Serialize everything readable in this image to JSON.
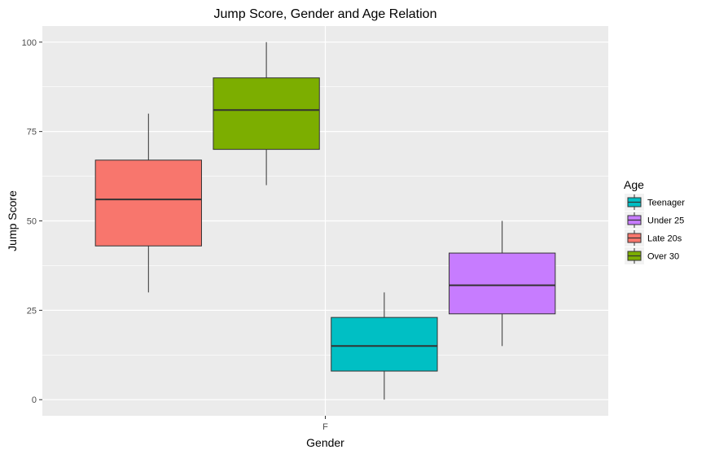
{
  "chart_data": {
    "type": "boxplot",
    "title": "Jump Score, Gender and Age Relation",
    "xlabel": "Gender",
    "ylabel": "Jump Score",
    "x_categories": [
      "F"
    ],
    "ylim": [
      -4.5,
      104.5
    ],
    "y_ticks": [
      0,
      25,
      50,
      75,
      100
    ],
    "grid": true,
    "legend": {
      "title": "Age",
      "placement": "right",
      "entries": [
        {
          "label": "Teenager",
          "color": "#00BFC4"
        },
        {
          "label": "Under 25",
          "color": "#C77CFF"
        },
        {
          "label": "Late 20s",
          "color": "#F8766D"
        },
        {
          "label": "Over 30",
          "color": "#7CAE00"
        }
      ]
    },
    "series": [
      {
        "name": "Late 20s",
        "color": "#F8766D",
        "x_offset": -0.375,
        "min": 30,
        "q1": 43,
        "median": 56,
        "q3": 67,
        "max": 80
      },
      {
        "name": "Over 30",
        "color": "#7CAE00",
        "x_offset": -0.125,
        "min": 60,
        "q1": 70,
        "median": 81,
        "q3": 90,
        "max": 100
      },
      {
        "name": "Teenager",
        "color": "#00BFC4",
        "x_offset": 0.125,
        "min": 0,
        "q1": 8,
        "median": 15,
        "q3": 23,
        "max": 30
      },
      {
        "name": "Under 25",
        "color": "#C77CFF",
        "x_offset": 0.375,
        "min": 15,
        "q1": 24,
        "median": 32,
        "q3": 41,
        "max": 50
      }
    ]
  }
}
